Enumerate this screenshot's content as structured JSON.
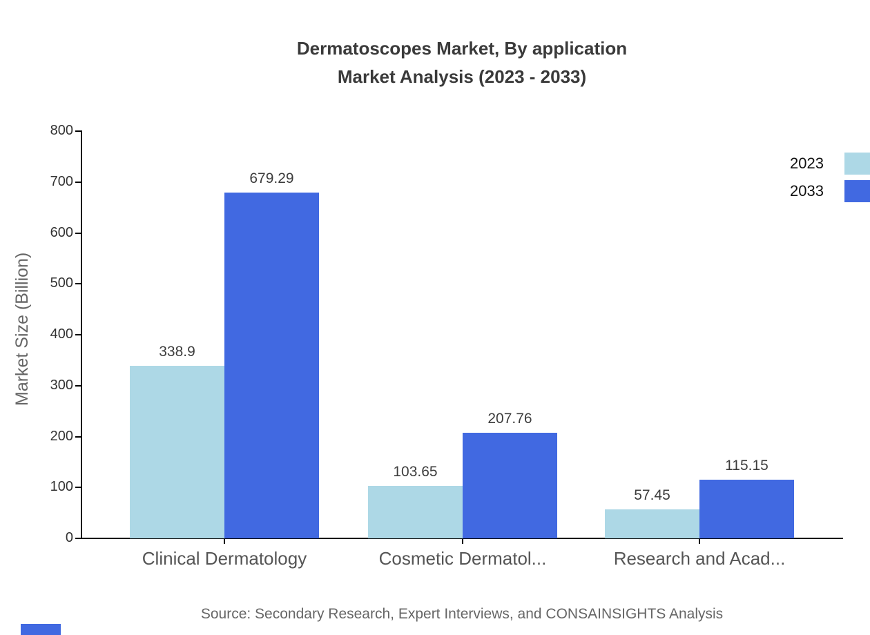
{
  "title": {
    "line1": "Dermatoscopes Market, By application",
    "line2": "Market Analysis (2023 - 2033)"
  },
  "legend": {
    "items": [
      {
        "label": "2023",
        "color": "#add8e6"
      },
      {
        "label": "2033",
        "color": "#4169e1"
      }
    ]
  },
  "y_axis": {
    "title": "Market Size (Billion)",
    "ticks": [
      0,
      100,
      200,
      300,
      400,
      500,
      600,
      700,
      800
    ]
  },
  "source": "Source: Secondary Research, Expert Interviews, and CONSAINSIGHTS Analysis",
  "brand_color": "#4169e1",
  "chart_data": {
    "type": "bar",
    "title": "Dermatoscopes Market, By application Market Analysis (2023 - 2033)",
    "categories": [
      "Clinical Dermatology",
      "Cosmetic Dermatol...",
      "Research and Acad..."
    ],
    "series": [
      {
        "name": "2023",
        "color": "#add8e6",
        "values": [
          338.9,
          103.65,
          57.45
        ]
      },
      {
        "name": "2033",
        "color": "#4169e1",
        "values": [
          679.29,
          207.76,
          115.15
        ]
      }
    ],
    "value_labels": [
      [
        "338.9",
        "103.65",
        "57.45"
      ],
      [
        "679.29",
        "207.76",
        "115.15"
      ]
    ],
    "xlabel": "",
    "ylabel": "Market Size (Billion)",
    "ylim": [
      0,
      800
    ],
    "grid": false,
    "legend_position": "right"
  }
}
